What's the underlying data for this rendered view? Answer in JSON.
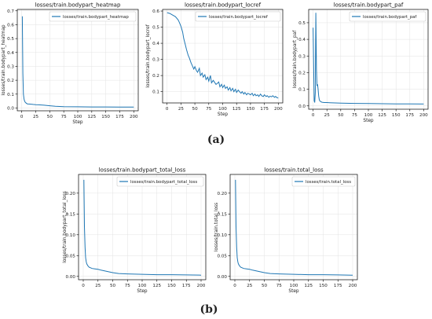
{
  "captions": {
    "a": "(a)",
    "b": "(b)"
  },
  "chart_data": [
    {
      "type": "line",
      "title": "losses/train.bodypart_heatmap",
      "xlabel": "Step",
      "ylabel": "losses/train.bodypart_heatmap",
      "xlim": [
        -8,
        208
      ],
      "ylim": [
        -0.02,
        0.71
      ],
      "xticks": [
        0,
        25,
        50,
        75,
        100,
        125,
        150,
        175,
        200
      ],
      "yticks": [
        0.0,
        0.1,
        0.2,
        0.3,
        0.4,
        0.5,
        0.6,
        0.7
      ],
      "ytick_labels": [
        "0.0",
        "0.1",
        "0.2",
        "0.3",
        "0.4",
        "0.5",
        "0.6",
        "0.7"
      ],
      "grid": true,
      "legend_position": "top-right",
      "series": [
        {
          "name": "losses/train.bodypart_heatmap",
          "color": "#1f77b4",
          "x": [
            1,
            2,
            3,
            4,
            5,
            6,
            8,
            10,
            15,
            20,
            25,
            30,
            40,
            50,
            60,
            75,
            100,
            125,
            150,
            175,
            200
          ],
          "y": [
            0.66,
            0.25,
            0.1,
            0.065,
            0.05,
            0.042,
            0.035,
            0.03,
            0.028,
            0.026,
            0.024,
            0.023,
            0.02,
            0.016,
            0.012,
            0.01,
            0.009,
            0.008,
            0.008,
            0.007,
            0.007
          ]
        }
      ]
    },
    {
      "type": "line",
      "title": "losses/train.bodypart_locref",
      "xlabel": "Step",
      "ylabel": "losses/train.bodypart_locref",
      "xlim": [
        -8,
        208
      ],
      "ylim": [
        0.03,
        0.61
      ],
      "xticks": [
        0,
        25,
        50,
        75,
        100,
        125,
        150,
        175,
        200
      ],
      "yticks": [
        0.1,
        0.2,
        0.3,
        0.4,
        0.5,
        0.6
      ],
      "ytick_labels": [
        "0.1",
        "0.2",
        "0.3",
        "0.4",
        "0.5",
        "0.6"
      ],
      "grid": true,
      "legend_position": "top-right",
      "series": [
        {
          "name": "losses/train.bodypart_locref",
          "color": "#1f77b4",
          "x": [
            0,
            5,
            10,
            15,
            20,
            22,
            25,
            28,
            30,
            33,
            35,
            38,
            40,
            43,
            45,
            48,
            50,
            53,
            55,
            58,
            60,
            63,
            65,
            68,
            70,
            73,
            75,
            78,
            80,
            83,
            85,
            88,
            90,
            93,
            95,
            98,
            100,
            103,
            105,
            108,
            110,
            113,
            115,
            118,
            120,
            123,
            125,
            128,
            130,
            133,
            135,
            138,
            140,
            143,
            145,
            148,
            150,
            153,
            155,
            158,
            160,
            163,
            165,
            168,
            170,
            173,
            175,
            178,
            180,
            183,
            185,
            188,
            190,
            193,
            195,
            198,
            200
          ],
          "y": [
            0.59,
            0.585,
            0.575,
            0.565,
            0.545,
            0.53,
            0.505,
            0.47,
            0.43,
            0.39,
            0.36,
            0.325,
            0.31,
            0.28,
            0.265,
            0.24,
            0.255,
            0.23,
            0.22,
            0.245,
            0.2,
            0.215,
            0.19,
            0.205,
            0.175,
            0.19,
            0.165,
            0.2,
            0.155,
            0.17,
            0.16,
            0.145,
            0.15,
            0.16,
            0.13,
            0.145,
            0.125,
            0.14,
            0.12,
            0.13,
            0.11,
            0.125,
            0.105,
            0.12,
            0.1,
            0.115,
            0.095,
            0.11,
            0.1,
            0.09,
            0.1,
            0.085,
            0.095,
            0.08,
            0.09,
            0.085,
            0.08,
            0.09,
            0.075,
            0.085,
            0.075,
            0.08,
            0.07,
            0.085,
            0.075,
            0.07,
            0.08,
            0.07,
            0.075,
            0.065,
            0.072,
            0.068,
            0.075,
            0.065,
            0.07,
            0.062,
            0.06
          ]
        }
      ]
    },
    {
      "type": "line",
      "title": "losses/train.bodypart_paf",
      "xlabel": "Step",
      "ylabel": "losses/train.bodypart_paf",
      "xlim": [
        -8,
        208
      ],
      "ylim": [
        -0.02,
        0.58
      ],
      "xticks": [
        0,
        25,
        50,
        75,
        100,
        125,
        150,
        175,
        200
      ],
      "yticks": [
        0.0,
        0.1,
        0.2,
        0.3,
        0.4,
        0.5
      ],
      "ytick_labels": [
        "0.0",
        "0.1",
        "0.2",
        "0.3",
        "0.4",
        "0.5"
      ],
      "grid": true,
      "legend_position": "top-right",
      "series": [
        {
          "name": "losses/train.bodypart_paf",
          "color": "#1f77b4",
          "x": [
            0,
            1,
            2,
            3,
            4,
            5,
            6,
            7,
            8,
            9,
            10,
            11,
            12,
            14,
            16,
            20,
            25,
            30,
            40,
            50,
            75,
            100,
            125,
            150,
            175,
            200
          ],
          "y": [
            0.47,
            0.25,
            0.03,
            0.02,
            0.08,
            0.56,
            0.22,
            0.12,
            0.13,
            0.1,
            0.06,
            0.04,
            0.03,
            0.025,
            0.022,
            0.02,
            0.02,
            0.019,
            0.018,
            0.017,
            0.015,
            0.014,
            0.013,
            0.012,
            0.012,
            0.011
          ]
        }
      ]
    },
    {
      "type": "line",
      "title": "losses/train.bodypart_total_loss",
      "xlabel": "Step",
      "ylabel": "losses/train.bodypart_total_loss",
      "xlim": [
        -8,
        208
      ],
      "ylim": [
        -0.008,
        0.245
      ],
      "xticks": [
        0,
        25,
        50,
        75,
        100,
        125,
        150,
        175,
        200
      ],
      "yticks": [
        0.0,
        0.05,
        0.1,
        0.15,
        0.2
      ],
      "ytick_labels": [
        "0.00",
        "0.05",
        "0.10",
        "0.15",
        "0.20"
      ],
      "grid": true,
      "legend_position": "top-right",
      "series": [
        {
          "name": "losses/train.bodypart_total_loss",
          "color": "#1f77b4",
          "x": [
            1,
            2,
            3,
            4,
            5,
            6,
            8,
            10,
            15,
            20,
            25,
            30,
            40,
            50,
            60,
            75,
            100,
            125,
            150,
            175,
            200
          ],
          "y": [
            0.232,
            0.12,
            0.07,
            0.045,
            0.035,
            0.03,
            0.025,
            0.022,
            0.019,
            0.018,
            0.017,
            0.015,
            0.012,
            0.009,
            0.007,
            0.006,
            0.005,
            0.004,
            0.004,
            0.0035,
            0.003
          ]
        }
      ]
    },
    {
      "type": "line",
      "title": "losses/train.total_loss",
      "xlabel": "Step",
      "ylabel": "losses/train.total_loss",
      "xlim": [
        -8,
        208
      ],
      "ylim": [
        -0.008,
        0.245
      ],
      "xticks": [
        0,
        25,
        50,
        75,
        100,
        125,
        150,
        175,
        200
      ],
      "yticks": [
        0.0,
        0.05,
        0.1,
        0.15,
        0.2
      ],
      "ytick_labels": [
        "0.00",
        "0.05",
        "0.10",
        "0.15",
        "0.20"
      ],
      "grid": true,
      "legend_position": "top-right",
      "series": [
        {
          "name": "losses/train.total_loss",
          "color": "#1f77b4",
          "x": [
            1,
            2,
            3,
            4,
            5,
            6,
            8,
            10,
            15,
            20,
            25,
            30,
            40,
            50,
            60,
            75,
            100,
            125,
            150,
            175,
            200
          ],
          "y": [
            0.232,
            0.12,
            0.07,
            0.045,
            0.035,
            0.03,
            0.025,
            0.022,
            0.019,
            0.018,
            0.017,
            0.015,
            0.012,
            0.009,
            0.007,
            0.006,
            0.005,
            0.004,
            0.004,
            0.0035,
            0.003
          ]
        }
      ]
    }
  ]
}
